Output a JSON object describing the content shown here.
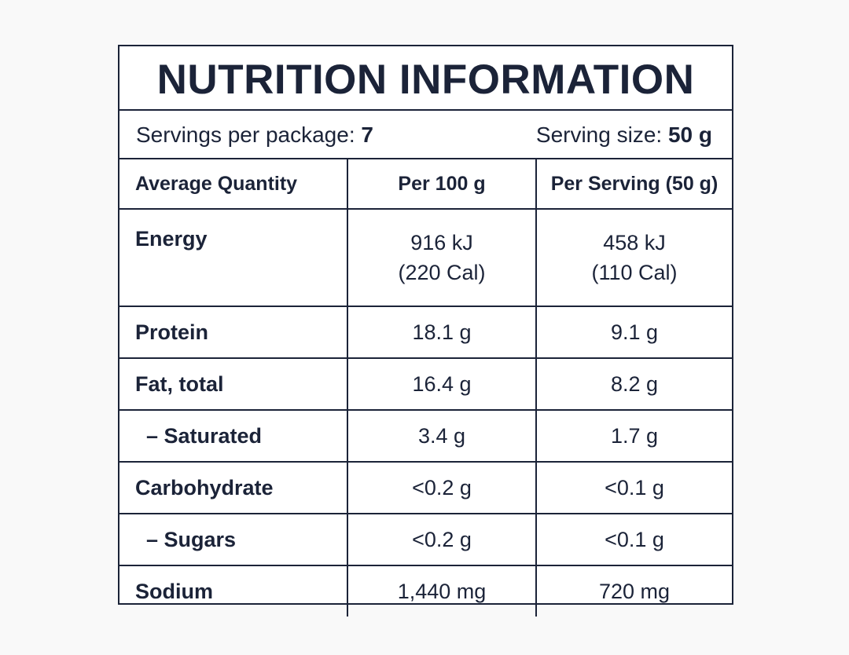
{
  "title": "NUTRITION INFORMATION",
  "servings": {
    "per_package_label": "Servings per package:",
    "per_package_value": "7",
    "size_label": "Serving size:",
    "size_value": "50 g"
  },
  "table": {
    "headers": [
      "Average Quantity",
      "Per 100 g",
      "Per Serving (50 g)"
    ],
    "energy": {
      "label": "Energy",
      "per100_kj": "916 kJ",
      "per100_cal": "(220 Cal)",
      "serving_kj": "458 kJ",
      "serving_cal": "(110 Cal)"
    },
    "rows": [
      {
        "label": "Protein",
        "per100": "18.1 g",
        "serving": "9.1 g"
      },
      {
        "label": "Fat, total",
        "per100": "16.4 g",
        "serving": "8.2 g"
      },
      {
        "label": "– Saturated",
        "per100": "3.4 g",
        "serving": "1.7 g"
      },
      {
        "label": "Carbohydrate",
        "per100": "<0.2 g",
        "serving": "<0.1 g"
      },
      {
        "label": "– Sugars",
        "per100": "<0.2 g",
        "serving": "<0.1 g"
      },
      {
        "label": "Sodium",
        "per100": "1,440 mg",
        "serving": "720 mg"
      }
    ]
  },
  "colors": {
    "ink": "#1b2338",
    "background": "#f9f9f9",
    "panel": "#ffffff"
  }
}
